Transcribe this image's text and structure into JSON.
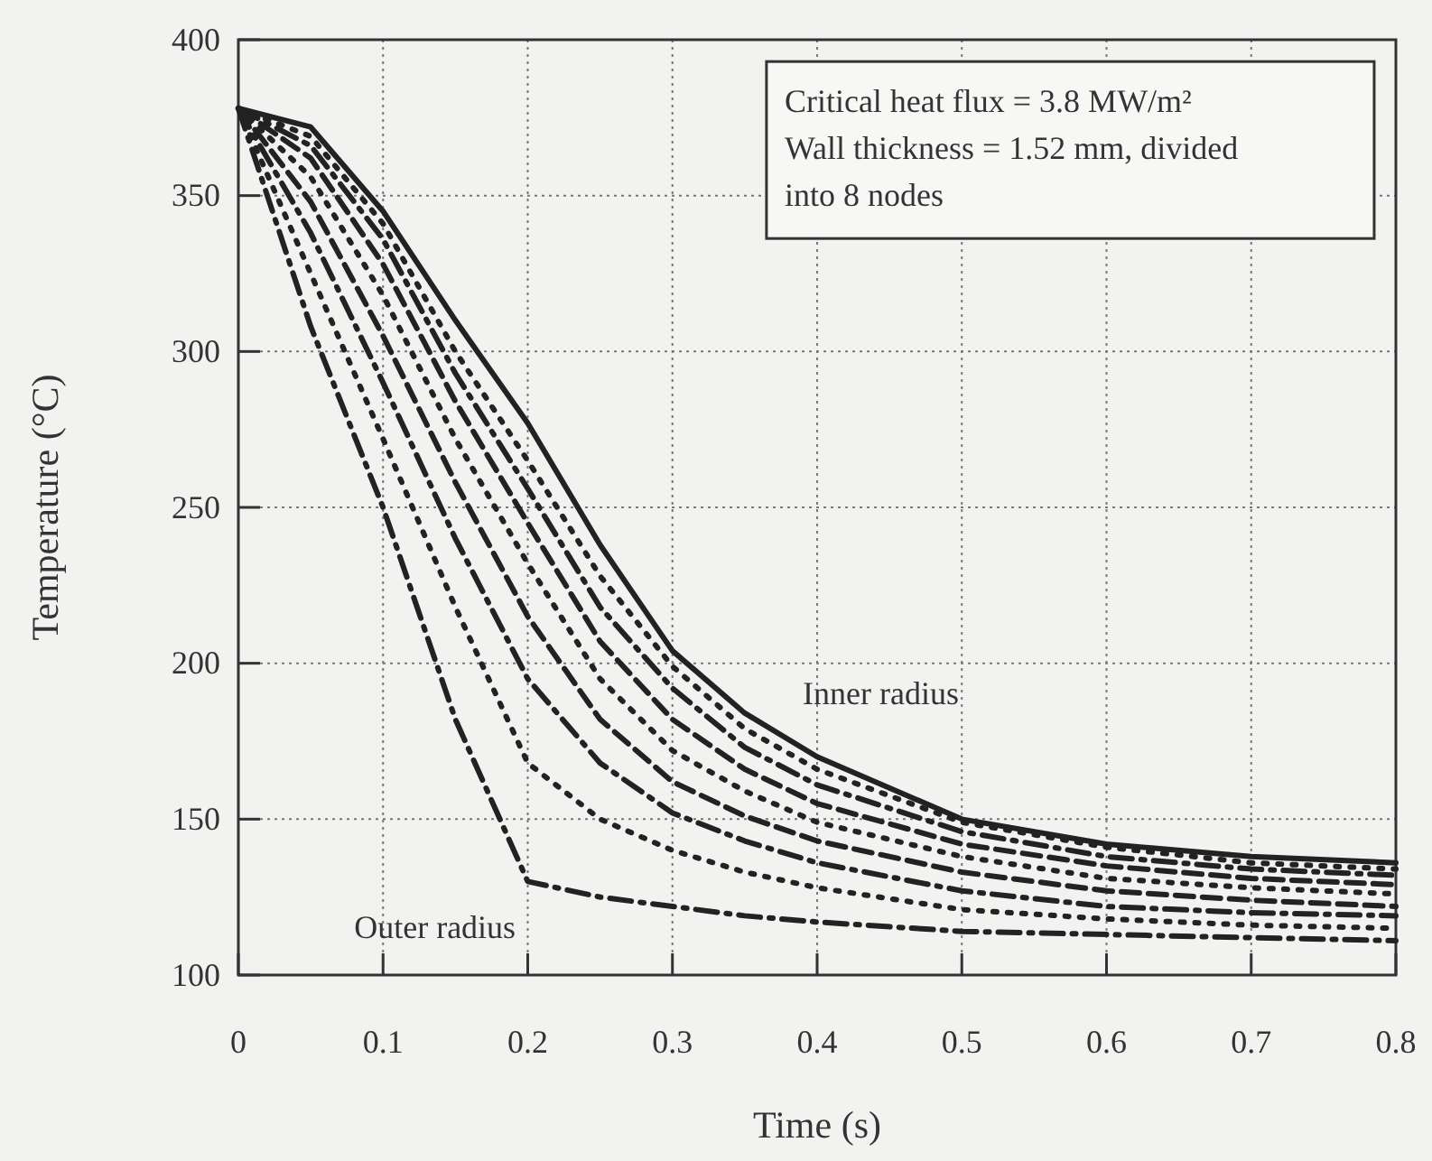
{
  "chart_data": {
    "type": "line",
    "xlabel": "Time (s)",
    "ylabel": "Temperature (°C)",
    "x": [
      0,
      0.05,
      0.1,
      0.15,
      0.2,
      0.25,
      0.3,
      0.35,
      0.4,
      0.5,
      0.6,
      0.7,
      0.8
    ],
    "series": [
      {
        "color": "#222222",
        "line_style": "dashdot",
        "values": [
          378,
          308,
          250,
          182,
          130,
          125,
          122,
          119,
          117,
          114,
          113,
          112,
          111
        ]
      },
      {
        "color": "#222222",
        "line_style": "dotted",
        "values": [
          378,
          325,
          272,
          218,
          168,
          150,
          140,
          133,
          128,
          121,
          118,
          116,
          115
        ]
      },
      {
        "color": "#222222",
        "line_style": "dashdot",
        "values": [
          378,
          338,
          290,
          240,
          195,
          168,
          152,
          143,
          136,
          127,
          122,
          120,
          119
        ]
      },
      {
        "color": "#222222",
        "line_style": "dashed",
        "values": [
          378,
          348,
          305,
          258,
          215,
          182,
          162,
          151,
          143,
          133,
          127,
          124,
          122
        ]
      },
      {
        "color": "#222222",
        "line_style": "dotted",
        "values": [
          378,
          356,
          318,
          272,
          232,
          195,
          172,
          159,
          149,
          138,
          131,
          128,
          126
        ]
      },
      {
        "color": "#222222",
        "line_style": "dashed",
        "values": [
          378,
          362,
          328,
          284,
          245,
          207,
          182,
          166,
          155,
          142,
          135,
          131,
          129
        ]
      },
      {
        "color": "#222222",
        "line_style": "dashdot",
        "values": [
          378,
          366,
          336,
          293,
          256,
          218,
          192,
          173,
          161,
          146,
          138,
          134,
          132
        ]
      },
      {
        "color": "#222222",
        "line_style": "dotted",
        "values": [
          378,
          369,
          341,
          300,
          265,
          228,
          199,
          179,
          166,
          149,
          141,
          136,
          134
        ]
      },
      {
        "color": "#222222",
        "line_style": "solid",
        "values": [
          378,
          372,
          345,
          310,
          277,
          238,
          204,
          184,
          170,
          150,
          142,
          138,
          136
        ]
      }
    ],
    "xlim": [
      0,
      0.8
    ],
    "ylim": [
      100,
      400
    ],
    "xticks": [
      0,
      0.1,
      0.2,
      0.3,
      0.4,
      0.5,
      0.6,
      0.7,
      0.8
    ],
    "yticks": [
      100,
      150,
      200,
      250,
      300,
      350,
      400
    ],
    "grid": true,
    "marker": "none",
    "annotations": [
      "Inner radius",
      "Outer radius",
      "Critical heat flux = 3.8 MW/m²",
      "Wall thickness = 1.52 mm, divided into 8 nodes"
    ]
  }
}
